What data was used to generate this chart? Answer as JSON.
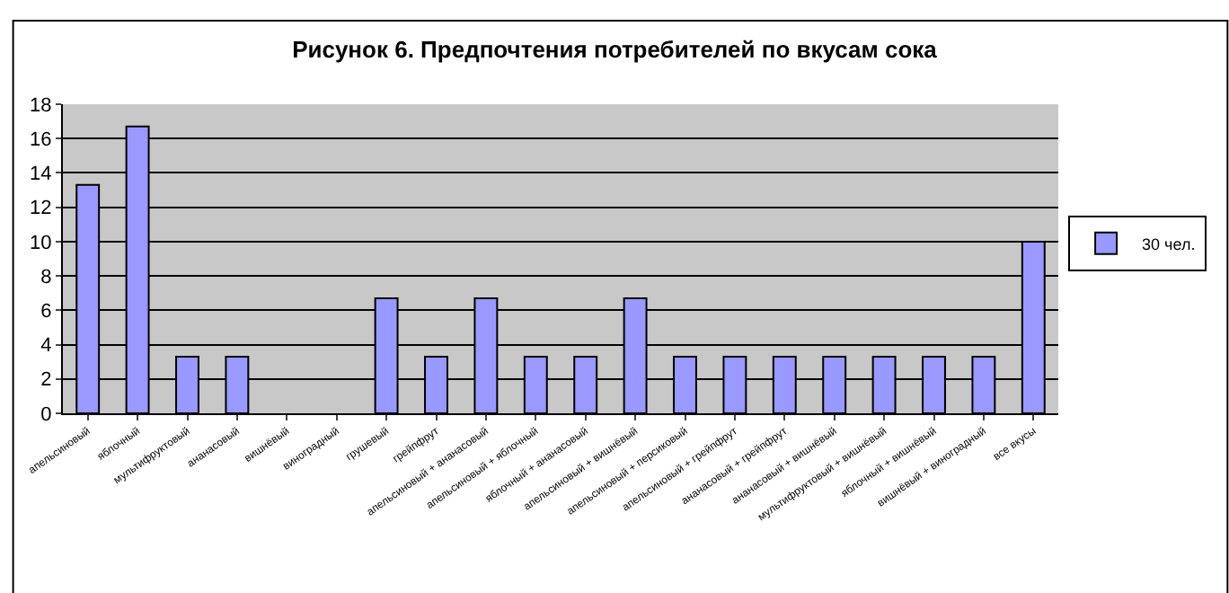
{
  "chart_data": {
    "type": "bar",
    "title": "Рисунок 6. Предпочтения потребителей по вкусам сока",
    "categories": [
      "апельсиновый",
      "яблочный",
      "мультифруктовый",
      "ананасовый",
      "вишнёвый",
      "виноградный",
      "грушевый",
      "грейпфрут",
      "апельсиновый + ананасовый",
      "апельсиновый + яблочный",
      "яблочный + ананасовый",
      "апельсиновый + вишнёвый",
      "апельсиновый + персиковый",
      "апельсиновый + грейпфрут",
      "ананасовый + грейпфрут",
      "ананасовый + вишнёвый",
      "мультифруктовый + вишнёвый",
      "яблочный + вишнёвый",
      "вишнёвый + виноградный",
      "все вкусы"
    ],
    "series": [
      {
        "name": "30 чел.",
        "color": "#9999ff",
        "values": [
          13.3,
          16.7,
          3.3,
          3.3,
          null,
          null,
          6.7,
          3.3,
          6.7,
          3.3,
          3.3,
          6.7,
          3.3,
          3.3,
          3.3,
          3.3,
          3.3,
          3.3,
          3.3,
          10
        ]
      }
    ],
    "ylim": [
      0,
      18
    ],
    "yticks": [
      0,
      2,
      4,
      6,
      8,
      10,
      12,
      14,
      16,
      18
    ],
    "grid": "y",
    "legend": "right"
  }
}
